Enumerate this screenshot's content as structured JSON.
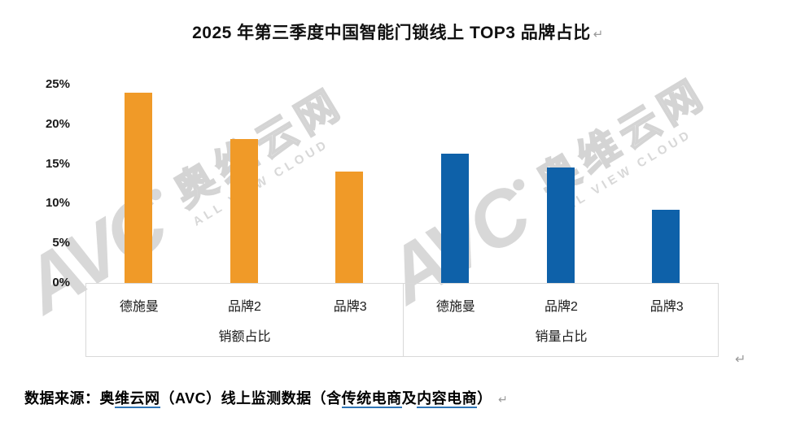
{
  "title": {
    "text": "2025 年第三季度中国智能门锁线上 TOP3 品牌占比",
    "return_mark": "↵"
  },
  "chart_data": {
    "type": "bar",
    "title": "2025 年第三季度中国智能门锁线上 TOP3 品牌占比",
    "xlabel": "",
    "ylabel": "",
    "ylim": [
      0,
      25
    ],
    "y_unit": "%",
    "ytick_labels": [
      "25%",
      "20%",
      "15%",
      "10%",
      "5%",
      "0%"
    ],
    "grid": false,
    "legend_position": "none",
    "categories": [
      "德施曼",
      "品牌2",
      "品牌3"
    ],
    "series": [
      {
        "name": "销额占比",
        "color": "#F09A28",
        "values": [
          24.0,
          18.1,
          14.0
        ]
      },
      {
        "name": "销量占比",
        "color": "#0E61A9",
        "values": [
          16.3,
          14.5,
          9.2
        ]
      }
    ],
    "group_labels": [
      "销额占比",
      "销量占比"
    ],
    "axis_color": "#d9d9d9"
  },
  "watermark": {
    "logo": "AVC",
    "cn": "奥维云网",
    "en": "ALL VIEW CLOUD",
    "color": "#d8d8d8"
  },
  "chart_return_mark": "↵",
  "source": {
    "parts": [
      {
        "text": "数据来源：奥",
        "underline": false
      },
      {
        "text": "维云网",
        "underline": true
      },
      {
        "text": "（AVC）线上监测数据（含",
        "underline": false
      },
      {
        "text": "传统电商",
        "underline": true
      },
      {
        "text": "及",
        "underline": false
      },
      {
        "text": "内容电商",
        "underline": true
      },
      {
        "text": "）",
        "underline": false
      }
    ],
    "underline_color": "#2E75B6",
    "return_mark": "↵"
  }
}
